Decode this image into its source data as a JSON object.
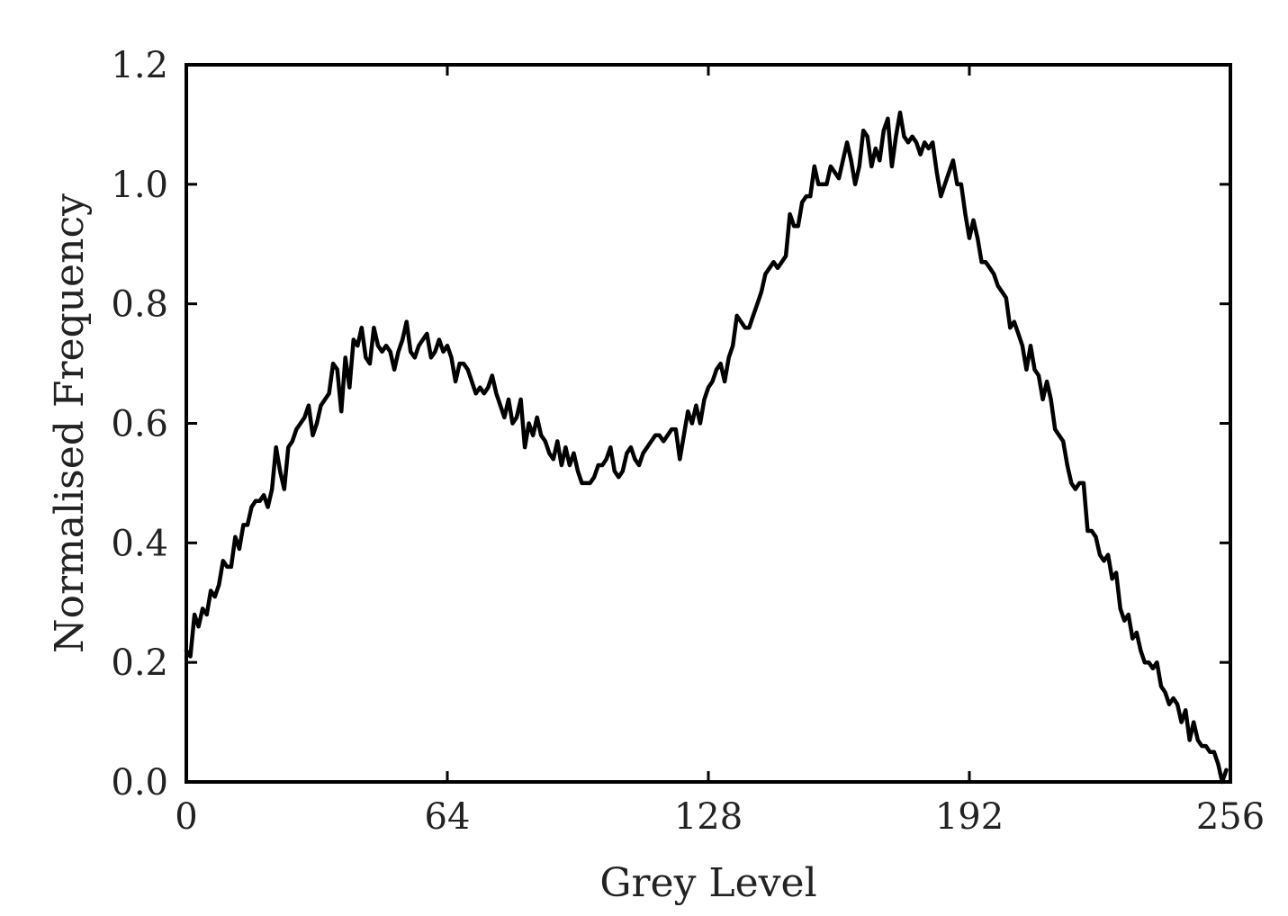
{
  "chart_data": {
    "type": "line",
    "title": "",
    "xlabel": "Grey Level",
    "ylabel": "Normalised Frequency",
    "xlim": [
      0,
      256
    ],
    "ylim": [
      0.0,
      1.2
    ],
    "xticks": [
      0,
      64,
      128,
      192,
      256
    ],
    "xtick_labels": [
      "0",
      "64",
      "128",
      "192",
      "256"
    ],
    "yticks": [
      0.0,
      0.2,
      0.4,
      0.6,
      0.8,
      1.0,
      1.2
    ],
    "ytick_labels": [
      "0.0",
      "0.2",
      "0.4",
      "0.6",
      "0.8",
      "1.0",
      "1.2"
    ],
    "grid": false,
    "legend": "none",
    "line_color": "#000000",
    "series": [
      {
        "x": [
          0,
          1,
          2,
          3,
          4,
          5,
          6,
          7,
          8,
          9,
          10,
          11,
          12,
          13,
          14,
          15,
          16,
          17,
          18,
          19,
          20,
          21,
          22,
          23,
          24,
          25,
          26,
          27,
          28,
          29,
          30,
          31,
          32,
          33,
          34,
          35,
          36,
          37,
          38,
          39,
          40,
          41,
          42,
          43,
          44,
          45,
          46,
          47,
          48,
          49,
          50,
          51,
          52,
          53,
          54,
          55,
          56,
          57,
          58,
          59,
          60,
          61,
          62,
          63,
          64,
          65,
          66,
          67,
          68,
          69,
          70,
          71,
          72,
          73,
          74,
          75,
          76,
          77,
          78,
          79,
          80,
          81,
          82,
          83,
          84,
          85,
          86,
          87,
          88,
          89,
          90,
          91,
          92,
          93,
          94,
          95,
          96,
          97,
          98,
          99,
          100,
          101,
          102,
          103,
          104,
          105,
          106,
          107,
          108,
          109,
          110,
          111,
          112,
          113,
          114,
          115,
          116,
          117,
          118,
          119,
          120,
          121,
          122,
          123,
          124,
          125,
          126,
          127,
          128,
          129,
          130,
          131,
          132,
          133,
          134,
          135,
          136,
          137,
          138,
          139,
          140,
          141,
          142,
          143,
          144,
          145,
          146,
          147,
          148,
          149,
          150,
          151,
          152,
          153,
          154,
          155,
          156,
          157,
          158,
          159,
          160,
          161,
          162,
          163,
          164,
          165,
          166,
          167,
          168,
          169,
          170,
          171,
          172,
          173,
          174,
          175,
          176,
          177,
          178,
          179,
          180,
          181,
          182,
          183,
          184,
          185,
          186,
          187,
          188,
          189,
          190,
          191,
          192,
          193,
          194,
          195,
          196,
          197,
          198,
          199,
          200,
          201,
          202,
          203,
          204,
          205,
          206,
          207,
          208,
          209,
          210,
          211,
          212,
          213,
          214,
          215,
          216,
          217,
          218,
          219,
          220,
          221,
          222,
          223,
          224,
          225,
          226,
          227,
          228,
          229,
          230,
          231,
          232,
          233,
          234,
          235,
          236,
          237,
          238,
          239,
          240,
          241,
          242,
          243,
          244,
          245,
          246,
          247,
          248,
          249,
          250,
          251,
          252,
          253,
          254,
          255
        ],
        "y": [
          0.22,
          0.21,
          0.28,
          0.26,
          0.29,
          0.28,
          0.32,
          0.31,
          0.33,
          0.37,
          0.36,
          0.36,
          0.41,
          0.39,
          0.43,
          0.43,
          0.46,
          0.47,
          0.47,
          0.48,
          0.46,
          0.49,
          0.56,
          0.52,
          0.49,
          0.56,
          0.57,
          0.59,
          0.6,
          0.61,
          0.63,
          0.58,
          0.6,
          0.63,
          0.64,
          0.65,
          0.7,
          0.69,
          0.62,
          0.71,
          0.66,
          0.74,
          0.73,
          0.76,
          0.71,
          0.7,
          0.76,
          0.73,
          0.72,
          0.73,
          0.72,
          0.69,
          0.72,
          0.74,
          0.77,
          0.72,
          0.71,
          0.73,
          0.74,
          0.75,
          0.71,
          0.72,
          0.74,
          0.72,
          0.73,
          0.71,
          0.67,
          0.7,
          0.7,
          0.69,
          0.67,
          0.65,
          0.66,
          0.65,
          0.66,
          0.68,
          0.65,
          0.63,
          0.61,
          0.64,
          0.6,
          0.61,
          0.64,
          0.56,
          0.6,
          0.58,
          0.61,
          0.58,
          0.57,
          0.55,
          0.54,
          0.57,
          0.53,
          0.56,
          0.53,
          0.55,
          0.52,
          0.5,
          0.5,
          0.5,
          0.51,
          0.53,
          0.53,
          0.54,
          0.56,
          0.52,
          0.51,
          0.52,
          0.55,
          0.56,
          0.54,
          0.53,
          0.55,
          0.56,
          0.57,
          0.58,
          0.58,
          0.57,
          0.58,
          0.59,
          0.59,
          0.54,
          0.58,
          0.62,
          0.6,
          0.63,
          0.6,
          0.64,
          0.66,
          0.67,
          0.69,
          0.7,
          0.67,
          0.71,
          0.73,
          0.78,
          0.77,
          0.76,
          0.76,
          0.78,
          0.8,
          0.82,
          0.85,
          0.86,
          0.87,
          0.86,
          0.87,
          0.88,
          0.95,
          0.93,
          0.93,
          0.97,
          0.98,
          0.98,
          1.03,
          1.0,
          1.0,
          1.0,
          1.03,
          1.02,
          1.01,
          1.04,
          1.07,
          1.04,
          1.0,
          1.03,
          1.09,
          1.08,
          1.03,
          1.06,
          1.04,
          1.09,
          1.11,
          1.03,
          1.08,
          1.12,
          1.08,
          1.07,
          1.08,
          1.07,
          1.05,
          1.07,
          1.06,
          1.07,
          1.02,
          0.98,
          1.0,
          1.02,
          1.04,
          1.0,
          1.0,
          0.95,
          0.91,
          0.94,
          0.91,
          0.87,
          0.87,
          0.86,
          0.85,
          0.83,
          0.82,
          0.81,
          0.76,
          0.77,
          0.75,
          0.73,
          0.69,
          0.73,
          0.69,
          0.68,
          0.64,
          0.67,
          0.64,
          0.59,
          0.58,
          0.57,
          0.53,
          0.5,
          0.49,
          0.5,
          0.5,
          0.42,
          0.42,
          0.41,
          0.38,
          0.37,
          0.38,
          0.34,
          0.35,
          0.29,
          0.27,
          0.28,
          0.24,
          0.25,
          0.22,
          0.2,
          0.2,
          0.19,
          0.2,
          0.16,
          0.15,
          0.13,
          0.14,
          0.13,
          0.1,
          0.12,
          0.07,
          0.1,
          0.07,
          0.06,
          0.06,
          0.05,
          0.05,
          0.03,
          0.0,
          0.02
        ]
      }
    ]
  }
}
